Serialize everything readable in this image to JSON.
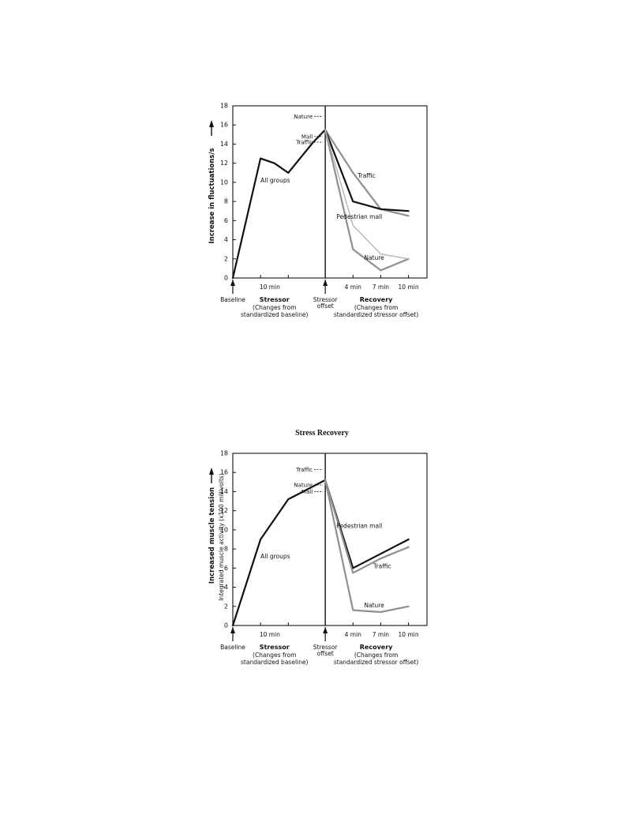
{
  "page_heading": "Stress Recovery",
  "chart_data": [
    {
      "type": "line",
      "ylabel": "Increase in fluctuations/s",
      "ylabel2": "",
      "ylim": [
        0,
        18
      ],
      "yticks": [
        0,
        2,
        4,
        6,
        8,
        10,
        12,
        14,
        16,
        18
      ],
      "xlim": [
        0,
        21
      ],
      "divider_x": 10,
      "x_tick_positions": [
        3,
        6,
        10,
        13,
        16,
        19
      ],
      "x_tick_labels": [
        {
          "x": 4,
          "text": "10 min"
        },
        {
          "x": 13,
          "text": "4 min"
        },
        {
          "x": 16,
          "text": "7 min"
        },
        {
          "x": 19,
          "text": "10 min"
        }
      ],
      "bottom_labels": {
        "baseline": "Baseline",
        "stressor": "Stressor",
        "stressor_note_1": "(Changes from",
        "stressor_note_2": "standardized baseline)",
        "offset_1": "Stressor",
        "offset_2": "offset",
        "recovery": "Recovery",
        "recovery_note_1": "(Changes from",
        "recovery_note_2": "standardized stressor offset)"
      },
      "series": [
        {
          "name": "All groups",
          "x": [
            0,
            3,
            4.5,
            6,
            8.7,
            10
          ],
          "y": [
            0,
            12.5,
            12,
            11,
            14.2,
            15.5
          ],
          "color": "#111111",
          "width": 2.2
        },
        {
          "name": "Traffic",
          "x": [
            10,
            13,
            16,
            19
          ],
          "y": [
            15.5,
            11,
            7.2,
            6.5
          ],
          "color": "#8f8f8f",
          "width": 2.2
        },
        {
          "name": "Pedestrian mall",
          "x": [
            10,
            13,
            16,
            19
          ],
          "y": [
            15.5,
            8,
            7.2,
            7
          ],
          "color": "#111111",
          "width": 2.2
        },
        {
          "name": "Nature",
          "x": [
            10,
            13,
            16,
            19
          ],
          "y": [
            15.5,
            3,
            0.8,
            2
          ],
          "color": "#8f8f8f",
          "width": 2.2
        },
        {
          "name": "",
          "x": [
            10,
            13,
            16,
            19
          ],
          "y": [
            15.5,
            5.5,
            2.5,
            2
          ],
          "color": "#b5b5b5",
          "width": 1.4
        }
      ],
      "labels": [
        {
          "text": "All groups",
          "x": 3,
          "y": 10
        },
        {
          "text": "Traffic",
          "x": 13.5,
          "y": 10.5
        },
        {
          "text": "Pedestrian mall",
          "x": 11.2,
          "y": 6.2
        },
        {
          "text": "Nature",
          "x": 14.2,
          "y": 1.9
        }
      ],
      "legend_marks": [
        {
          "text": "Nature",
          "y": 16.9
        },
        {
          "text": "Mall",
          "y": 14.8
        },
        {
          "text": "Traffic",
          "y": 14.2
        }
      ]
    },
    {
      "type": "line",
      "ylabel": "Increased muscle tension",
      "ylabel2": "Integrated muscle activity (x100 millivolts)",
      "ylim": [
        0,
        18
      ],
      "yticks": [
        0,
        2,
        4,
        6,
        8,
        10,
        12,
        14,
        16,
        18
      ],
      "xlim": [
        0,
        21
      ],
      "divider_x": 10,
      "x_tick_positions": [
        3,
        6,
        10,
        13,
        16,
        19
      ],
      "x_tick_labels": [
        {
          "x": 4,
          "text": "10 min"
        },
        {
          "x": 13,
          "text": "4 min"
        },
        {
          "x": 16,
          "text": "7 min"
        },
        {
          "x": 19,
          "text": "10 min"
        }
      ],
      "bottom_labels": {
        "baseline": "Baseline",
        "stressor": "Stressor",
        "stressor_note_1": "(Changes from",
        "stressor_note_2": "standardized baseline)",
        "offset_1": "Stressor",
        "offset_2": "offset",
        "recovery": "Recovery",
        "recovery_note_1": "(Changes from",
        "recovery_note_2": "standardized stressor offset)"
      },
      "series": [
        {
          "name": "All groups",
          "x": [
            0,
            3,
            6,
            10
          ],
          "y": [
            0,
            9,
            13.2,
            15.2
          ],
          "color": "#111111",
          "width": 2.2
        },
        {
          "name": "Pedestrian mall",
          "x": [
            10,
            13,
            16,
            19
          ],
          "y": [
            15.2,
            6,
            7.5,
            9
          ],
          "color": "#111111",
          "width": 2.2
        },
        {
          "name": "Traffic",
          "x": [
            10,
            13,
            16,
            19
          ],
          "y": [
            15.2,
            5.5,
            7,
            8.2
          ],
          "color": "#8f8f8f",
          "width": 2.2
        },
        {
          "name": "Nature",
          "x": [
            10,
            13,
            16,
            19
          ],
          "y": [
            15.2,
            1.6,
            1.4,
            2
          ],
          "color": "#8f8f8f",
          "width": 2.2
        }
      ],
      "labels": [
        {
          "text": "Pedestrian mall",
          "x": 11.2,
          "y": 10.2
        },
        {
          "text": "All groups",
          "x": 3,
          "y": 7
        },
        {
          "text": "Traffic",
          "x": 15.2,
          "y": 6
        },
        {
          "text": "Nature",
          "x": 14.2,
          "y": 1.9
        }
      ],
      "legend_marks": [
        {
          "text": "Traffic",
          "y": 16.3
        },
        {
          "text": "Nature",
          "y": 14.7
        },
        {
          "text": "Mall",
          "y": 14
        }
      ]
    }
  ]
}
